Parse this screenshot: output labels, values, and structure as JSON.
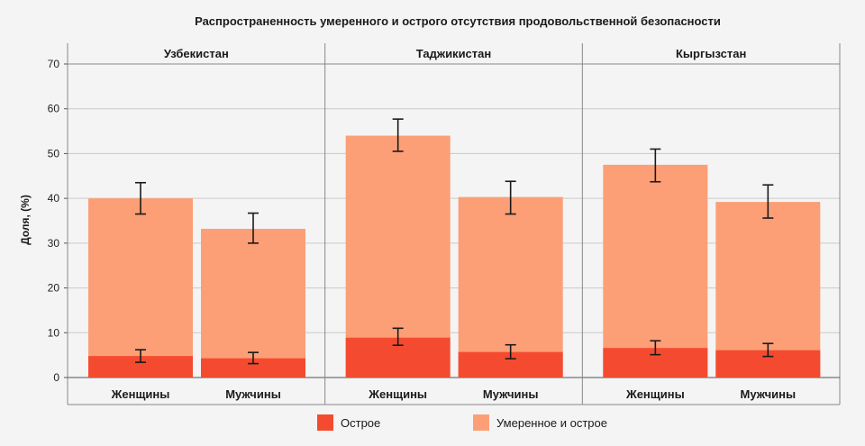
{
  "chart_data": {
    "type": "bar",
    "title": "Распространенность умеренного и острого отсутствия продовольственной безопасности",
    "ylabel": "Доля, (%)",
    "ylim": [
      0,
      70
    ],
    "yticks": [
      0,
      10,
      20,
      30,
      40,
      50,
      60,
      70
    ],
    "grid": true,
    "legend_position": "bottom",
    "colors": {
      "acute": "#f44b30",
      "moderate": "#fc9f76"
    },
    "categories": [
      "Женщины",
      "Мужчины"
    ],
    "panels": [
      {
        "name": "Узбекистан",
        "bars": [
          {
            "category": "Женщины",
            "acute": 4.8,
            "acute_err": [
              3.4,
              6.2
            ],
            "moderate_acute": 40.0,
            "moderate_acute_err": [
              36.5,
              43.5
            ]
          },
          {
            "category": "Мужчины",
            "acute": 4.3,
            "acute_err": [
              3.1,
              5.6
            ],
            "moderate_acute": 33.2,
            "moderate_acute_err": [
              30.0,
              36.7
            ]
          }
        ]
      },
      {
        "name": "Таджикистан",
        "bars": [
          {
            "category": "Женщины",
            "acute": 8.9,
            "acute_err": [
              7.2,
              11.0
            ],
            "moderate_acute": 54.0,
            "moderate_acute_err": [
              50.5,
              57.7
            ]
          },
          {
            "category": "Мужчины",
            "acute": 5.7,
            "acute_err": [
              4.2,
              7.3
            ],
            "moderate_acute": 40.3,
            "moderate_acute_err": [
              36.5,
              43.8
            ]
          }
        ]
      },
      {
        "name": "Кыргызстан",
        "bars": [
          {
            "category": "Женщины",
            "acute": 6.6,
            "acute_err": [
              5.1,
              8.2
            ],
            "moderate_acute": 47.5,
            "moderate_acute_err": [
              43.7,
              51.0
            ]
          },
          {
            "category": "Мужчины",
            "acute": 6.1,
            "acute_err": [
              4.7,
              7.6
            ],
            "moderate_acute": 39.2,
            "moderate_acute_err": [
              35.6,
              43.0
            ]
          }
        ]
      }
    ],
    "legend": [
      {
        "key": "acute",
        "label": "Острое"
      },
      {
        "key": "moderate",
        "label": "Умеренное и острое"
      }
    ]
  }
}
